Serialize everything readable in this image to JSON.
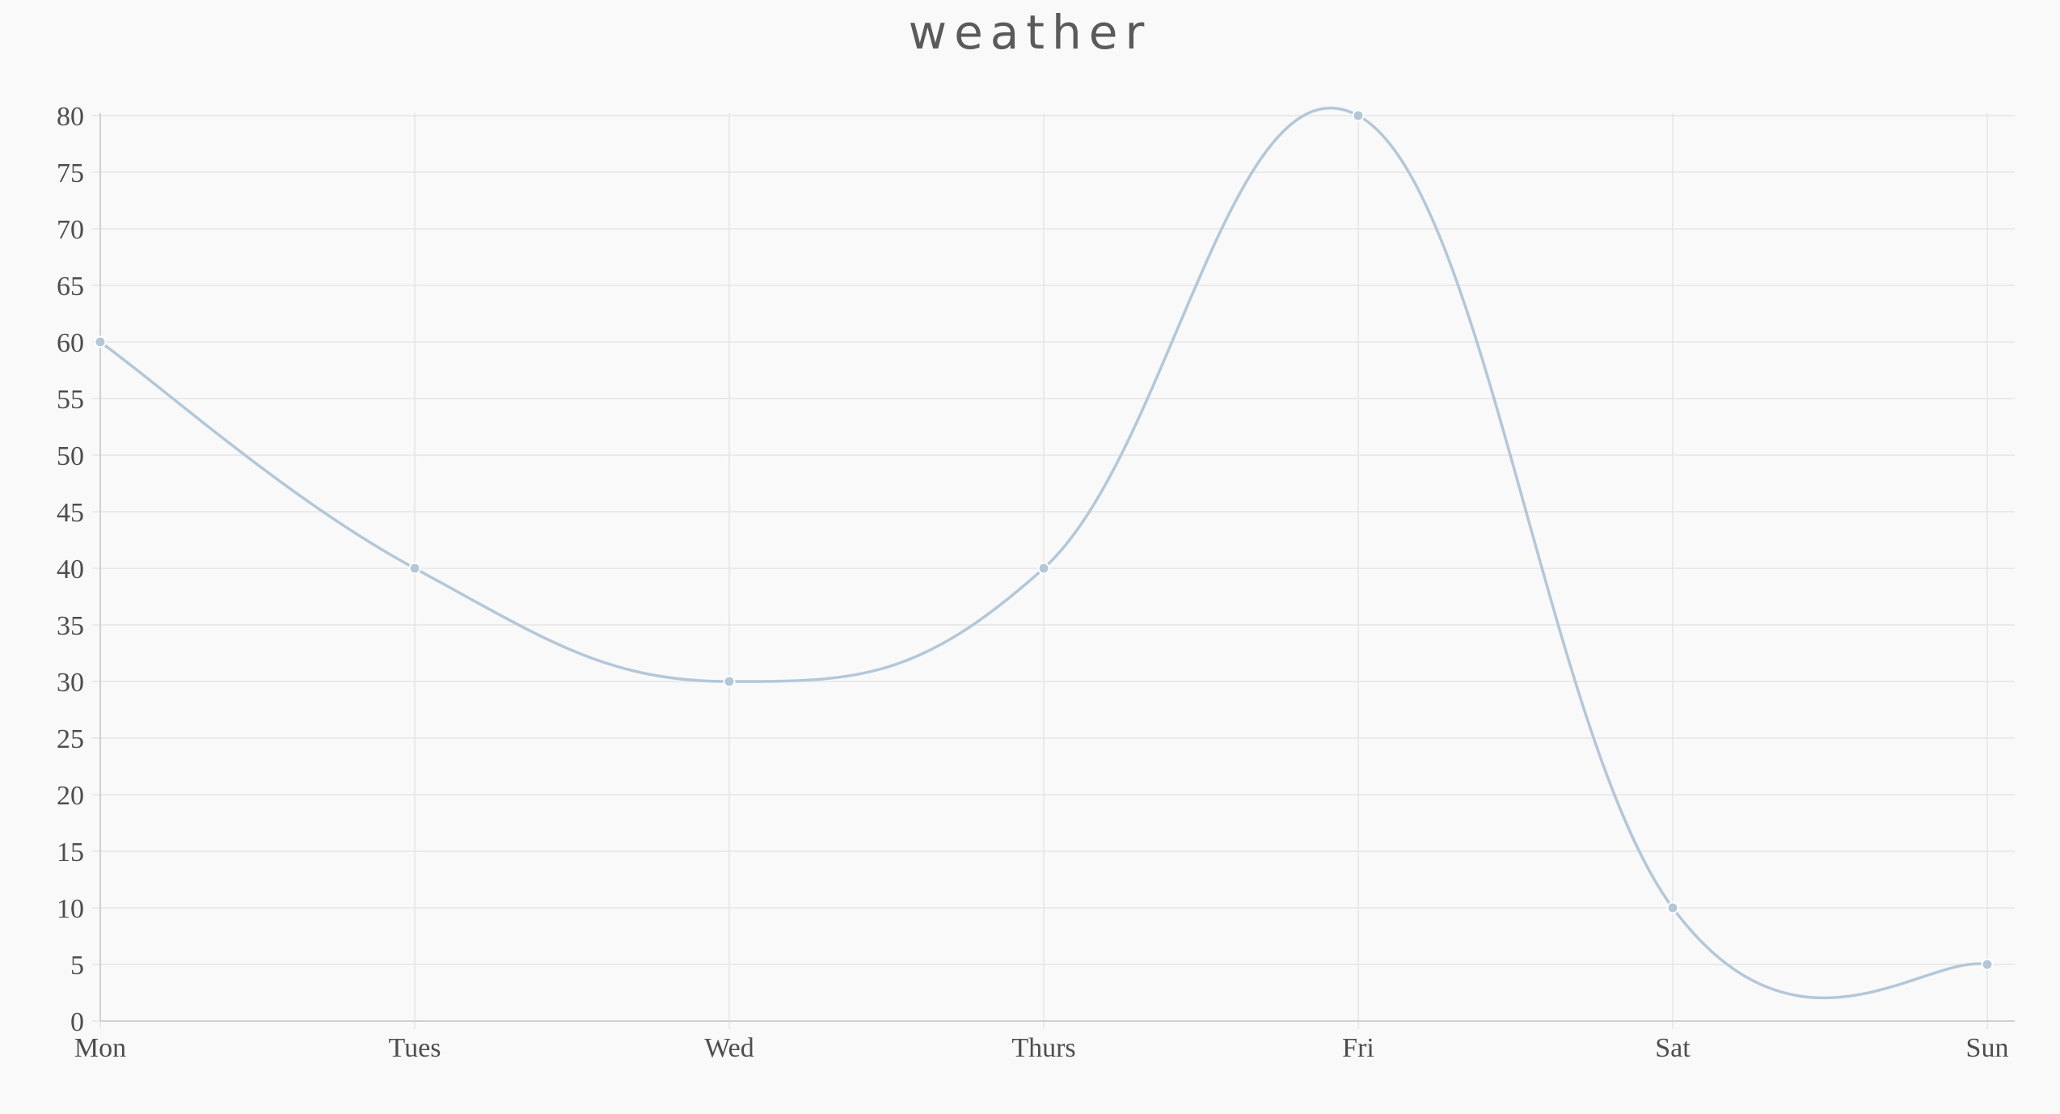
{
  "chart_data": {
    "type": "line",
    "title": "weather",
    "xlabel": "",
    "ylabel": "",
    "categories": [
      "Mon",
      "Tues",
      "Wed",
      "Thurs",
      "Fri",
      "Sat",
      "Sun"
    ],
    "series": [
      {
        "values": [
          60,
          40,
          30,
          40,
          80,
          10,
          5
        ]
      }
    ],
    "ylim": [
      0,
      80
    ],
    "yticks": [
      0,
      5,
      10,
      15,
      20,
      25,
      30,
      35,
      40,
      45,
      50,
      55,
      60,
      65,
      70,
      75,
      80
    ],
    "grid": true,
    "legend": "none",
    "colors": {
      "line": "#b3c7d8",
      "point": "#b3c7d8",
      "background": "#f9f9f9"
    }
  }
}
